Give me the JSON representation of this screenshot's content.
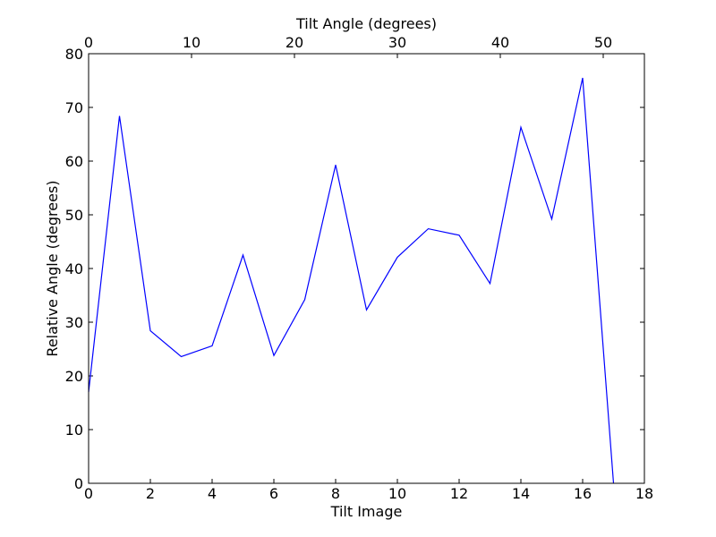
{
  "chart_data": {
    "type": "line",
    "xlabel": "Tilt Image",
    "ylabel": "Relative Angle (degrees)",
    "top_xlabel": "Tilt Angle (degrees)",
    "xlim": [
      0,
      18
    ],
    "ylim": [
      0,
      80
    ],
    "top_xlim": [
      0,
      54
    ],
    "x_ticks": [
      0,
      2,
      4,
      6,
      8,
      10,
      12,
      14,
      16,
      18
    ],
    "y_ticks": [
      0,
      10,
      20,
      30,
      40,
      50,
      60,
      70,
      80
    ],
    "top_x_ticks": [
      0,
      10,
      20,
      30,
      40,
      50
    ],
    "grid": false,
    "line_color": "#0000ff",
    "series": [
      {
        "x": [
          0,
          1,
          2,
          3,
          4,
          5,
          6,
          7,
          8,
          9,
          10,
          11,
          12,
          13,
          14,
          15,
          16,
          17
        ],
        "values": [
          17.0,
          68.4,
          28.4,
          23.6,
          25.6,
          42.5,
          23.8,
          34.2,
          59.3,
          32.3,
          42.1,
          47.4,
          46.2,
          37.2,
          66.3,
          49.2,
          75.5,
          0.0
        ]
      }
    ]
  }
}
